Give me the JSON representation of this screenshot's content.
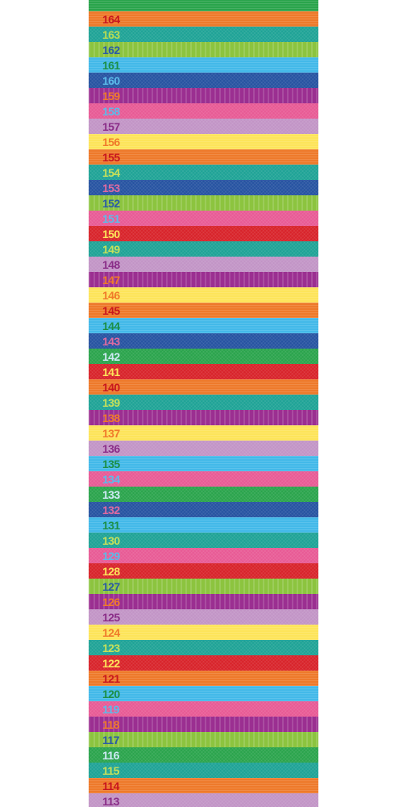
{
  "height_chart": {
    "stripes": [
      {
        "label": "",
        "color": "#2aa44c",
        "text_color": "#1f8a3c",
        "pattern": "h"
      },
      {
        "label": "164",
        "color": "#ee7a2b",
        "text_color": "#c8161f",
        "pattern": "h"
      },
      {
        "label": "163",
        "color": "#1ea396",
        "text_color": "#b8dc52",
        "pattern": "d"
      },
      {
        "label": "162",
        "color": "#8cc43f",
        "text_color": "#2a5ba6",
        "pattern": "v"
      },
      {
        "label": "161",
        "color": "#43b9e9",
        "text_color": "#1c8f46",
        "pattern": "h"
      },
      {
        "label": "160",
        "color": "#2653a1",
        "text_color": "#5bbbea",
        "pattern": "d"
      },
      {
        "label": "159",
        "color": "#9b2f91",
        "text_color": "#f07a2a",
        "pattern": "v"
      },
      {
        "label": "158",
        "color": "#e85a95",
        "text_color": "#5bbbea",
        "pattern": "d"
      },
      {
        "label": "157",
        "color": "#c294c6",
        "text_color": "#8a2d88",
        "pattern": "d"
      },
      {
        "label": "156",
        "color": "#fde45a",
        "text_color": "#f07a2a",
        "pattern": "h"
      },
      {
        "label": "155",
        "color": "#ee7a2b",
        "text_color": "#c8161f",
        "pattern": "h"
      },
      {
        "label": "154",
        "color": "#1ea396",
        "text_color": "#c6e05a",
        "pattern": "d"
      },
      {
        "label": "153",
        "color": "#2653a1",
        "text_color": "#e06aa0",
        "pattern": "d"
      },
      {
        "label": "152",
        "color": "#8cc43f",
        "text_color": "#2a5ba6",
        "pattern": "v"
      },
      {
        "label": "151",
        "color": "#e85a95",
        "text_color": "#5bbbea",
        "pattern": "d"
      },
      {
        "label": "150",
        "color": "#d8232a",
        "text_color": "#fde45a",
        "pattern": "d"
      },
      {
        "label": "149",
        "color": "#1ea396",
        "text_color": "#c6e05a",
        "pattern": "d"
      },
      {
        "label": "148",
        "color": "#c294c6",
        "text_color": "#8a2d88",
        "pattern": "d"
      },
      {
        "label": "147",
        "color": "#9b2f91",
        "text_color": "#f07a2a",
        "pattern": "v"
      },
      {
        "label": "146",
        "color": "#fde45a",
        "text_color": "#f07a2a",
        "pattern": "h"
      },
      {
        "label": "145",
        "color": "#ee7a2b",
        "text_color": "#c8161f",
        "pattern": "h"
      },
      {
        "label": "144",
        "color": "#43b9e9",
        "text_color": "#1c8f46",
        "pattern": "h"
      },
      {
        "label": "143",
        "color": "#2653a1",
        "text_color": "#e06aa0",
        "pattern": "d"
      },
      {
        "label": "142",
        "color": "#2aa44c",
        "text_color": "#cfeaf5",
        "pattern": "d"
      },
      {
        "label": "141",
        "color": "#d8232a",
        "text_color": "#fde45a",
        "pattern": "d"
      },
      {
        "label": "140",
        "color": "#ee7a2b",
        "text_color": "#c8161f",
        "pattern": "h"
      },
      {
        "label": "139",
        "color": "#1ea396",
        "text_color": "#c6e05a",
        "pattern": "d"
      },
      {
        "label": "138",
        "color": "#9b2f91",
        "text_color": "#f07a2a",
        "pattern": "v"
      },
      {
        "label": "137",
        "color": "#fde45a",
        "text_color": "#f07a2a",
        "pattern": "h"
      },
      {
        "label": "136",
        "color": "#c294c6",
        "text_color": "#8a2d88",
        "pattern": "d"
      },
      {
        "label": "135",
        "color": "#43b9e9",
        "text_color": "#1c8f46",
        "pattern": "h"
      },
      {
        "label": "134",
        "color": "#e85a95",
        "text_color": "#5bbbea",
        "pattern": "d"
      },
      {
        "label": "133",
        "color": "#2aa44c",
        "text_color": "#cfeaf5",
        "pattern": "d"
      },
      {
        "label": "132",
        "color": "#2653a1",
        "text_color": "#e06aa0",
        "pattern": "d"
      },
      {
        "label": "131",
        "color": "#43b9e9",
        "text_color": "#1c8f46",
        "pattern": "h"
      },
      {
        "label": "130",
        "color": "#1ea396",
        "text_color": "#c6e05a",
        "pattern": "d"
      },
      {
        "label": "129",
        "color": "#e85a95",
        "text_color": "#5bbbea",
        "pattern": "d"
      },
      {
        "label": "128",
        "color": "#d8232a",
        "text_color": "#fde45a",
        "pattern": "d"
      },
      {
        "label": "127",
        "color": "#8cc43f",
        "text_color": "#2a5ba6",
        "pattern": "v"
      },
      {
        "label": "126",
        "color": "#9b2f91",
        "text_color": "#f07a2a",
        "pattern": "v"
      },
      {
        "label": "125",
        "color": "#c294c6",
        "text_color": "#8a2d88",
        "pattern": "d"
      },
      {
        "label": "124",
        "color": "#fde45a",
        "text_color": "#f07a2a",
        "pattern": "h"
      },
      {
        "label": "123",
        "color": "#1ea396",
        "text_color": "#c6e05a",
        "pattern": "d"
      },
      {
        "label": "122",
        "color": "#d8232a",
        "text_color": "#fde45a",
        "pattern": "d"
      },
      {
        "label": "121",
        "color": "#ee7a2b",
        "text_color": "#c8161f",
        "pattern": "h"
      },
      {
        "label": "120",
        "color": "#43b9e9",
        "text_color": "#1c8f46",
        "pattern": "h"
      },
      {
        "label": "119",
        "color": "#e85a95",
        "text_color": "#5bbbea",
        "pattern": "d"
      },
      {
        "label": "118",
        "color": "#9b2f91",
        "text_color": "#f07a2a",
        "pattern": "v"
      },
      {
        "label": "117",
        "color": "#8cc43f",
        "text_color": "#2a5ba6",
        "pattern": "v"
      },
      {
        "label": "116",
        "color": "#2aa44c",
        "text_color": "#cfeaf5",
        "pattern": "d"
      },
      {
        "label": "115",
        "color": "#1ea396",
        "text_color": "#c6e05a",
        "pattern": "d"
      },
      {
        "label": "114",
        "color": "#ee7a2b",
        "text_color": "#c8161f",
        "pattern": "h"
      },
      {
        "label": "113",
        "color": "#c294c6",
        "text_color": "#8a2d88",
        "pattern": "d"
      },
      {
        "label": "",
        "color": "#2653a1",
        "text_color": "#e06aa0",
        "pattern": "d"
      }
    ]
  }
}
